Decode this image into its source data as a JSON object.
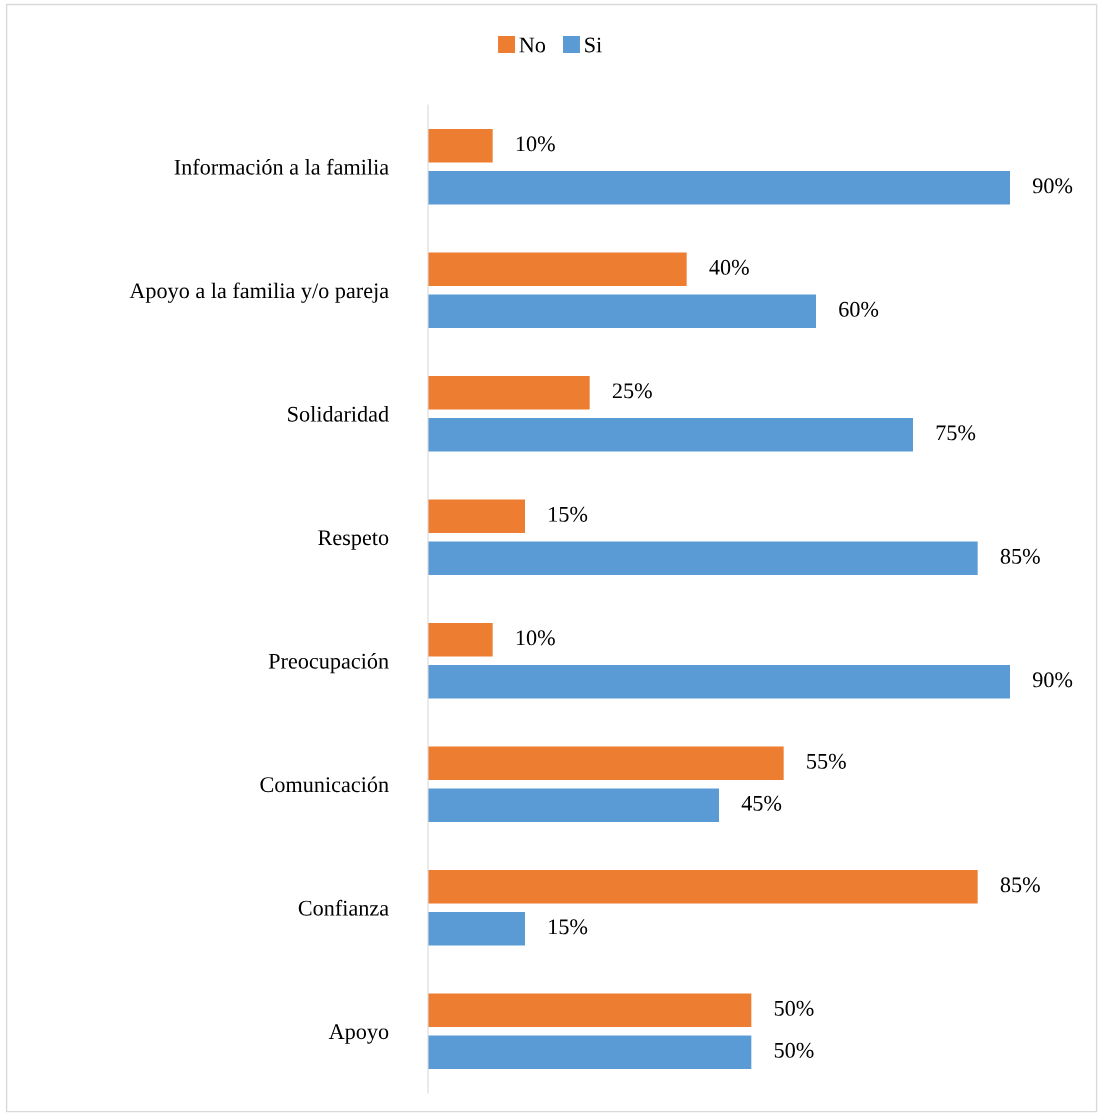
{
  "chart_data": {
    "type": "bar",
    "orientation": "horizontal",
    "categories": [
      "Información a la familia",
      "Apoyo a la familia y/o pareja",
      "Solidaridad",
      "Respeto",
      "Preocupación",
      "Comunicación",
      "Confianza",
      "Apoyo"
    ],
    "series": [
      {
        "name": "No",
        "color": "#ed7d31",
        "values": [
          10,
          40,
          25,
          15,
          10,
          55,
          85,
          50
        ],
        "value_labels": [
          "10%",
          "40%",
          "25%",
          "15%",
          "10%",
          "55%",
          "85%",
          "50%"
        ]
      },
      {
        "name": "Si",
        "color": "#5b9bd5",
        "values": [
          90,
          60,
          75,
          85,
          90,
          45,
          15,
          50
        ],
        "value_labels": [
          "90%",
          "60%",
          "75%",
          "85%",
          "90%",
          "45%",
          "15%",
          "50%"
        ]
      }
    ],
    "tick_labels": "y",
    "grid": false,
    "legend": "top"
  }
}
